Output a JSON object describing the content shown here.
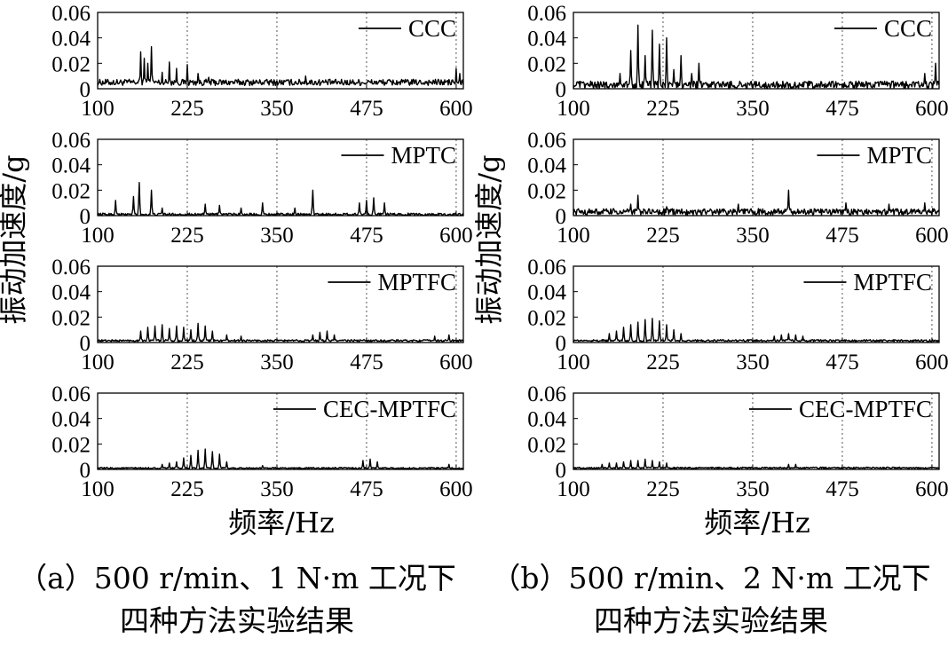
{
  "axis_common": {
    "ylabel": "振动加速度/g",
    "xlabel": "频率/Hz",
    "x_ticks": [
      100,
      225,
      350,
      475,
      600
    ],
    "y_ticks": [
      0,
      0.02,
      0.04,
      0.06
    ],
    "y_tick_labels": [
      "0",
      "0.02",
      "0.04",
      "0.06"
    ],
    "xlim": [
      100,
      610
    ],
    "ylim": [
      0,
      0.06
    ]
  },
  "captions": {
    "a_line1": "（a）500 r/min、1 N·m 工况下",
    "a_line2": "四种方法实验结果",
    "b_line1": "（b）500 r/min、2 N·m 工况下",
    "b_line2": "四种方法实验结果"
  },
  "chart_data": [
    {
      "type": "line",
      "panel": "a-1",
      "series": [
        {
          "name": "CCC"
        }
      ],
      "xlim": [
        100,
        610
      ],
      "ylim": [
        0,
        0.06
      ],
      "grid": "dotted-vertical",
      "legend": "top-right",
      "baseline": 0.005,
      "noise": 0.0025,
      "peaks": [
        [
          160,
          0.029
        ],
        [
          165,
          0.024
        ],
        [
          170,
          0.02
        ],
        [
          175,
          0.033
        ],
        [
          190,
          0.013
        ],
        [
          200,
          0.021
        ],
        [
          210,
          0.016
        ],
        [
          225,
          0.019
        ],
        [
          240,
          0.012
        ],
        [
          255,
          0.009
        ],
        [
          390,
          0.01
        ],
        [
          600,
          0.016
        ],
        [
          605,
          0.012
        ]
      ]
    },
    {
      "type": "line",
      "panel": "a-2",
      "series": [
        {
          "name": "MPTC"
        }
      ],
      "xlim": [
        100,
        610
      ],
      "ylim": [
        0,
        0.06
      ],
      "grid": "dotted-vertical",
      "legend": "top-right",
      "baseline": 0.001,
      "noise": 0.001,
      "peaks": [
        [
          125,
          0.012
        ],
        [
          150,
          0.015
        ],
        [
          158,
          0.026
        ],
        [
          175,
          0.02
        ],
        [
          190,
          0.006
        ],
        [
          250,
          0.009
        ],
        [
          270,
          0.008
        ],
        [
          300,
          0.006
        ],
        [
          330,
          0.01
        ],
        [
          375,
          0.006
        ],
        [
          400,
          0.02
        ],
        [
          465,
          0.01
        ],
        [
          475,
          0.012
        ],
        [
          485,
          0.014
        ],
        [
          500,
          0.01
        ]
      ]
    },
    {
      "type": "line",
      "panel": "a-3",
      "series": [
        {
          "name": "MPTFC"
        }
      ],
      "xlim": [
        100,
        610
      ],
      "ylim": [
        0,
        0.06
      ],
      "grid": "dotted-vertical",
      "legend": "top-right",
      "baseline": 0.0015,
      "noise": 0.0008,
      "peaks": [
        [
          160,
          0.009
        ],
        [
          170,
          0.012
        ],
        [
          180,
          0.013
        ],
        [
          190,
          0.014
        ],
        [
          200,
          0.011
        ],
        [
          210,
          0.013
        ],
        [
          220,
          0.012
        ],
        [
          230,
          0.01
        ],
        [
          240,
          0.015
        ],
        [
          250,
          0.013
        ],
        [
          260,
          0.009
        ],
        [
          280,
          0.006
        ],
        [
          300,
          0.005
        ],
        [
          400,
          0.006
        ],
        [
          410,
          0.008
        ],
        [
          420,
          0.009
        ],
        [
          430,
          0.006
        ],
        [
          570,
          0.005
        ],
        [
          590,
          0.006
        ]
      ]
    },
    {
      "type": "line",
      "panel": "a-4",
      "series": [
        {
          "name": "CEC-MPTFC"
        }
      ],
      "xlim": [
        100,
        610
      ],
      "ylim": [
        0,
        0.06
      ],
      "grid": "dotted-vertical",
      "legend": "top-right",
      "baseline": 0.001,
      "noise": 0.0006,
      "peaks": [
        [
          190,
          0.004
        ],
        [
          200,
          0.005
        ],
        [
          210,
          0.006
        ],
        [
          220,
          0.009
        ],
        [
          230,
          0.011
        ],
        [
          240,
          0.015
        ],
        [
          250,
          0.016
        ],
        [
          260,
          0.014
        ],
        [
          270,
          0.012
        ],
        [
          280,
          0.006
        ],
        [
          330,
          0.003
        ],
        [
          470,
          0.007
        ],
        [
          480,
          0.008
        ],
        [
          490,
          0.006
        ],
        [
          590,
          0.004
        ]
      ]
    },
    {
      "type": "line",
      "panel": "b-1",
      "series": [
        {
          "name": "CCC"
        }
      ],
      "xlim": [
        100,
        610
      ],
      "ylim": [
        0,
        0.06
      ],
      "grid": "dotted-vertical",
      "legend": "top-right",
      "baseline": 0.003,
      "noise": 0.003,
      "peaks": [
        [
          165,
          0.012
        ],
        [
          180,
          0.03
        ],
        [
          190,
          0.05
        ],
        [
          200,
          0.026
        ],
        [
          210,
          0.046
        ],
        [
          220,
          0.035
        ],
        [
          230,
          0.04
        ],
        [
          240,
          0.015
        ],
        [
          250,
          0.026
        ],
        [
          265,
          0.012
        ],
        [
          275,
          0.02
        ],
        [
          590,
          0.012
        ],
        [
          605,
          0.02
        ]
      ]
    },
    {
      "type": "line",
      "panel": "b-2",
      "series": [
        {
          "name": "MPTC"
        }
      ],
      "xlim": [
        100,
        610
      ],
      "ylim": [
        0,
        0.06
      ],
      "grid": "dotted-vertical",
      "legend": "top-right",
      "baseline": 0.003,
      "noise": 0.0025,
      "peaks": [
        [
          180,
          0.009
        ],
        [
          190,
          0.016
        ],
        [
          230,
          0.007
        ],
        [
          330,
          0.009
        ],
        [
          400,
          0.02
        ],
        [
          480,
          0.01
        ],
        [
          540,
          0.009
        ],
        [
          590,
          0.01
        ]
      ]
    },
    {
      "type": "line",
      "panel": "b-3",
      "series": [
        {
          "name": "MPTFC"
        }
      ],
      "xlim": [
        100,
        610
      ],
      "ylim": [
        0,
        0.06
      ],
      "grid": "dotted-vertical",
      "legend": "top-right",
      "baseline": 0.0015,
      "noise": 0.0008,
      "peaks": [
        [
          150,
          0.007
        ],
        [
          160,
          0.009
        ],
        [
          170,
          0.012
        ],
        [
          180,
          0.014
        ],
        [
          190,
          0.016
        ],
        [
          200,
          0.018
        ],
        [
          210,
          0.019
        ],
        [
          220,
          0.017
        ],
        [
          230,
          0.014
        ],
        [
          240,
          0.01
        ],
        [
          250,
          0.007
        ],
        [
          380,
          0.005
        ],
        [
          390,
          0.006
        ],
        [
          400,
          0.007
        ],
        [
          410,
          0.006
        ],
        [
          420,
          0.005
        ]
      ]
    },
    {
      "type": "line",
      "panel": "b-4",
      "series": [
        {
          "name": "CEC-MPTFC"
        }
      ],
      "xlim": [
        100,
        610
      ],
      "ylim": [
        0,
        0.06
      ],
      "grid": "dotted-vertical",
      "legend": "top-right",
      "baseline": 0.0012,
      "noise": 0.0006,
      "peaks": [
        [
          140,
          0.004
        ],
        [
          150,
          0.005
        ],
        [
          160,
          0.005
        ],
        [
          170,
          0.006
        ],
        [
          180,
          0.007
        ],
        [
          190,
          0.007
        ],
        [
          200,
          0.008
        ],
        [
          210,
          0.007
        ],
        [
          220,
          0.006
        ],
        [
          230,
          0.005
        ],
        [
          400,
          0.004
        ],
        [
          410,
          0.004
        ]
      ]
    }
  ]
}
